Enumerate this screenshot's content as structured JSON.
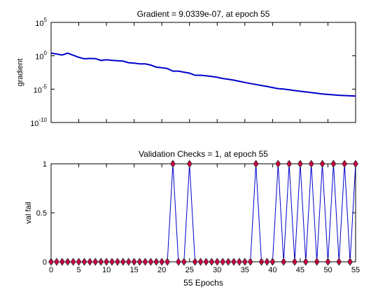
{
  "chart_data": [
    {
      "type": "line",
      "title": "Gradient = 9.0339e-07, at epoch 55",
      "xlabel": "",
      "ylabel": "gradient",
      "yscale": "log",
      "xlim": [
        0,
        55
      ],
      "ylim": [
        1e-10,
        100000
      ],
      "yticks": [
        {
          "value": 1e-10,
          "base": "10",
          "exp": "-10"
        },
        {
          "value": 1e-05,
          "base": "10",
          "exp": "-5"
        },
        {
          "value": 1,
          "base": "10",
          "exp": "0"
        },
        {
          "value": 100000,
          "base": "10",
          "exp": "5"
        }
      ],
      "grid": false,
      "line_color": "#0000cc",
      "series": [
        {
          "x": [
            0,
            1,
            2,
            3,
            4,
            5,
            6,
            7,
            8,
            9,
            10,
            11,
            12,
            13,
            14,
            15,
            16,
            17,
            18,
            19,
            20,
            21,
            22,
            23,
            24,
            25,
            26,
            27,
            28,
            29,
            30,
            31,
            32,
            33,
            34,
            35,
            36,
            37,
            38,
            39,
            40,
            41,
            42,
            43,
            44,
            45,
            46,
            47,
            48,
            49,
            50,
            51,
            52,
            53,
            54,
            55
          ],
          "y": [
            2.5,
            1.8,
            1.3,
            2.5,
            1.2,
            0.6,
            0.35,
            0.4,
            0.38,
            0.2,
            0.25,
            0.2,
            0.18,
            0.16,
            0.09,
            0.08,
            0.06,
            0.06,
            0.04,
            0.02,
            0.016,
            0.012,
            0.005,
            0.005,
            0.0035,
            0.0025,
            0.0012,
            0.0012,
            0.001,
            0.0008,
            0.0006,
            0.0004,
            0.0003,
            0.00022,
            0.00015,
            0.0001,
            7e-05,
            5e-05,
            3.5e-05,
            2.5e-05,
            1.7e-05,
            1.2e-05,
            1e-05,
            8e-06,
            6e-06,
            4.8e-06,
            3.8e-06,
            3e-06,
            2.4e-06,
            1.9e-06,
            1.6e-06,
            1.4e-06,
            1.2e-06,
            1.1e-06,
            1e-06,
            9.0339e-07
          ]
        }
      ]
    },
    {
      "type": "scatter",
      "title": "Validation Checks = 1, at epoch 55",
      "xlabel": "55 Epochs",
      "ylabel": "val fail",
      "xlim": [
        0,
        55
      ],
      "ylim": [
        0,
        1
      ],
      "xticks": [
        0,
        5,
        10,
        15,
        20,
        25,
        30,
        35,
        40,
        45,
        50,
        55
      ],
      "yticks": [
        0,
        0.5,
        1
      ],
      "grid": false,
      "line_color": "#0000cc",
      "marker": "diamond",
      "marker_fill": "#cc0044",
      "series": [
        {
          "x": [
            0,
            1,
            2,
            3,
            4,
            5,
            6,
            7,
            8,
            9,
            10,
            11,
            12,
            13,
            14,
            15,
            16,
            17,
            18,
            19,
            20,
            21,
            22,
            23,
            24,
            25,
            26,
            27,
            28,
            29,
            30,
            31,
            32,
            33,
            34,
            35,
            36,
            37,
            38,
            39,
            40,
            41,
            42,
            43,
            44,
            45,
            46,
            47,
            48,
            49,
            50,
            51,
            52,
            53,
            54,
            55
          ],
          "y": [
            0,
            0,
            0,
            0,
            0,
            0,
            0,
            0,
            0,
            0,
            0,
            0,
            0,
            0,
            0,
            0,
            0,
            0,
            0,
            0,
            0,
            0,
            1,
            0,
            0,
            1,
            0,
            0,
            0,
            0,
            0,
            0,
            0,
            0,
            0,
            0,
            0,
            1,
            0,
            0,
            0,
            1,
            0,
            1,
            0,
            1,
            0,
            1,
            0,
            1,
            0,
            1,
            0,
            1,
            0,
            1
          ]
        }
      ]
    }
  ]
}
